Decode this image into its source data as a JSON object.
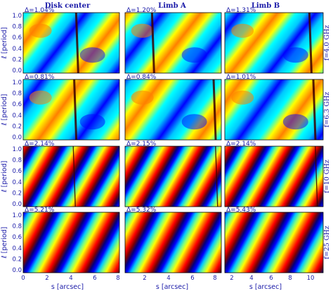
{
  "figure": {
    "columns": [
      "Disk center",
      "Limb A",
      "Limb B"
    ],
    "y_axis_label": "ℓ [period]",
    "x_axis_label": "s [arcsec]",
    "y_ticks": [
      "0.0",
      "0.2",
      "0.4",
      "0.6",
      "0.8",
      "1.0"
    ],
    "x_ticks_panel1": [
      "0",
      "2",
      "4",
      "6",
      "8"
    ],
    "x_ticks_panel2": [
      "2",
      "4",
      "6",
      "8"
    ],
    "x_ticks_panel3": [
      "2",
      "4",
      "6",
      "8",
      "10"
    ],
    "rows": [
      {
        "freq": "f=4.0 GHz",
        "deltas": [
          "Δ=1.04%",
          "Δ=1.20%",
          "Δ=1.31%"
        ]
      },
      {
        "freq": "f=6.3 GHz",
        "deltas": [
          "Δ=0.81%",
          "Δ=0.84%",
          "Δ=1.01%"
        ]
      },
      {
        "freq": "f=10 GHz",
        "deltas": [
          "Δ=2.14%",
          "Δ=2.15%",
          "Δ=2.14%"
        ]
      },
      {
        "freq": "f=25 GHz",
        "deltas": [
          "Δ=5.21%",
          "Δ=5.32%",
          "Δ=5.43%"
        ]
      }
    ],
    "colormap": [
      "#00007f",
      "#0000ff",
      "#00c8ff",
      "#00ffff",
      "#7fff7f",
      "#ffff00",
      "#ff7f00",
      "#ff0000",
      "#7f0000"
    ]
  }
}
